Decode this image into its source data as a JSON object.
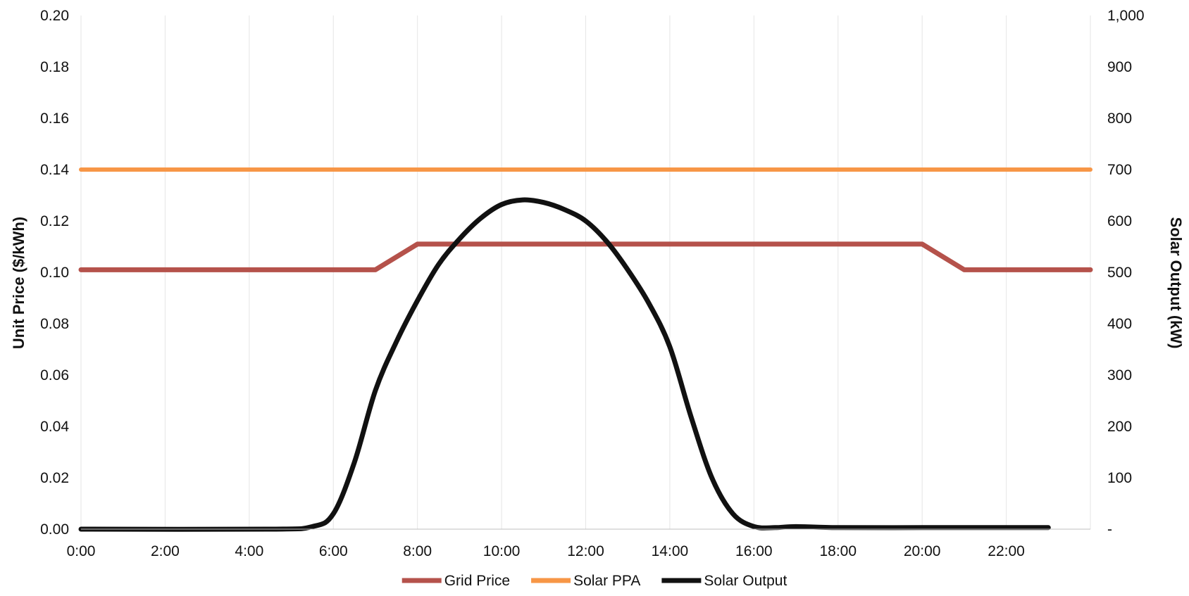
{
  "chart_data": {
    "type": "line",
    "title": "",
    "xlabel": "",
    "ylabel": "Unit Price ($/kWh)",
    "y2label": "Solar Output (kW)",
    "x_range": [
      0,
      24
    ],
    "x_ticks": [
      0,
      2,
      4,
      6,
      8,
      10,
      12,
      14,
      16,
      18,
      20,
      22
    ],
    "x_tick_labels": [
      "0:00",
      "2:00",
      "4:00",
      "6:00",
      "8:00",
      "10:00",
      "12:00",
      "14:00",
      "16:00",
      "18:00",
      "20:00",
      "22:00"
    ],
    "ylim": [
      0,
      0.2
    ],
    "y_ticks": [
      0,
      0.02,
      0.04,
      0.06,
      0.08,
      0.1,
      0.12,
      0.14,
      0.16,
      0.18,
      0.2
    ],
    "y_tick_labels": [
      "0.00",
      "0.02",
      "0.04",
      "0.06",
      "0.08",
      "0.10",
      "0.12",
      "0.14",
      "0.16",
      "0.18",
      "0.20"
    ],
    "y2lim": [
      0,
      1000
    ],
    "y2_ticks": [
      0,
      100,
      200,
      300,
      400,
      500,
      600,
      700,
      800,
      900,
      1000
    ],
    "y2_tick_labels": [
      "-",
      "100",
      "200",
      "300",
      "400",
      "500",
      "600",
      "700",
      "800",
      "900",
      "1,000"
    ],
    "grid": "vertical",
    "legend_position": "bottom",
    "series": [
      {
        "name": "Grid Price",
        "axis": "left",
        "color": "#b5524b",
        "x": [
          0,
          7,
          8,
          20,
          21,
          24
        ],
        "y": [
          0.101,
          0.101,
          0.111,
          0.111,
          0.101,
          0.101
        ]
      },
      {
        "name": "Solar PPA",
        "axis": "left",
        "color": "#f79646",
        "x": [
          0,
          24
        ],
        "y": [
          0.14,
          0.14
        ]
      },
      {
        "name": "Solar Output",
        "axis": "right",
        "color": "#111111",
        "x": [
          0,
          4.5,
          5.5,
          6,
          6.5,
          7,
          7.5,
          8,
          8.5,
          9,
          9.5,
          10,
          10.5,
          11,
          11.5,
          12,
          12.5,
          13,
          13.5,
          14,
          14.5,
          15,
          15.5,
          16,
          16.5,
          17,
          18,
          20,
          22,
          23
        ],
        "y": [
          0,
          0,
          5,
          30,
          130,
          270,
          365,
          445,
          515,
          565,
          605,
          632,
          641,
          636,
          622,
          600,
          560,
          505,
          440,
          355,
          220,
          100,
          30,
          5,
          3,
          5,
          3,
          3,
          3,
          3
        ]
      }
    ]
  }
}
